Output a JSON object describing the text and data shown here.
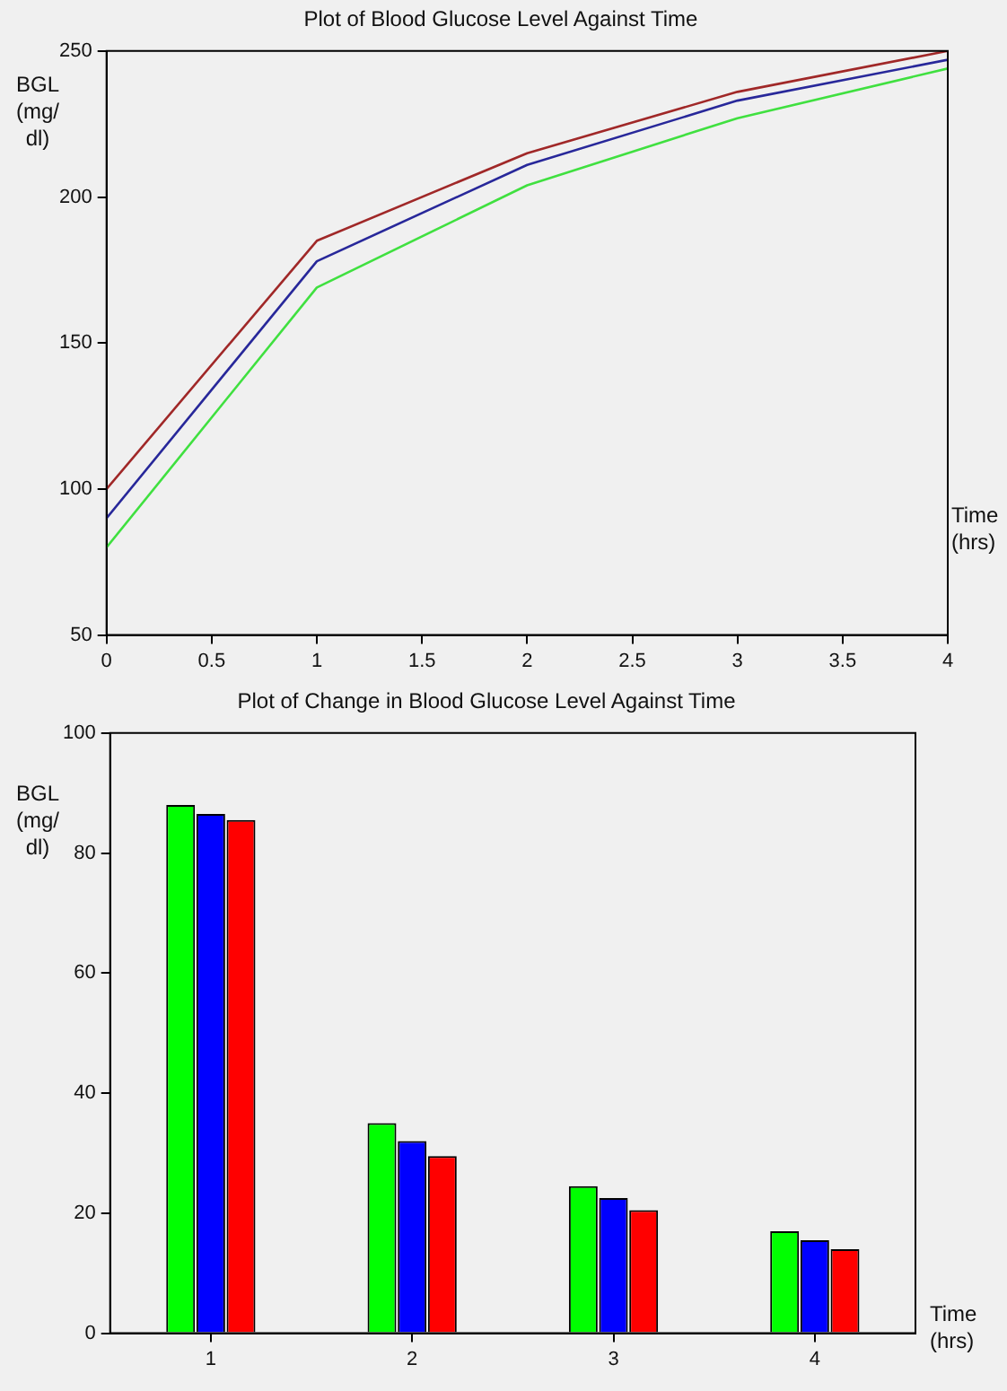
{
  "chart_data": [
    {
      "type": "line",
      "title": "Plot of Blood Glucose Level Against Time",
      "xlabel": "Time (hrs)",
      "ylabel": "BGL (mg/ dl)",
      "x": [
        0,
        1,
        2,
        3,
        4
      ],
      "series": [
        {
          "color": "#a02828",
          "values": [
            100,
            185,
            215,
            236,
            250
          ]
        },
        {
          "color": "#28289a",
          "values": [
            90,
            178,
            211,
            233,
            247
          ]
        },
        {
          "color": "#40e040",
          "values": [
            80,
            169,
            204,
            227,
            244
          ]
        }
      ],
      "xlim": [
        0,
        4
      ],
      "xticks": [
        0,
        0.5,
        1,
        1.5,
        2,
        2.5,
        3,
        3.5,
        4
      ],
      "ylim": [
        50,
        250
      ],
      "yticks": [
        50,
        100,
        150,
        200,
        250
      ],
      "grid": false,
      "legend": false,
      "marker": "none",
      "line_style": "solid"
    },
    {
      "type": "bar",
      "title": "Plot of Change in Blood Glucose Level Against Time",
      "xlabel": "Time (hrs)",
      "ylabel": "BGL (mg/ dl)",
      "categories": [
        "1",
        "2",
        "3",
        "4"
      ],
      "series": [
        {
          "color": "#ff0000",
          "values": [
            85.5,
            29.5,
            20.5,
            14
          ]
        },
        {
          "color": "#0000ff",
          "values": [
            86.5,
            32,
            22.5,
            15.5
          ]
        },
        {
          "color": "#00ff00",
          "values": [
            88,
            35,
            24.5,
            17
          ]
        }
      ],
      "ylim": [
        0,
        100
      ],
      "yticks": [
        0,
        20,
        40,
        60,
        80,
        100
      ],
      "grid": false,
      "legend": false
    }
  ]
}
